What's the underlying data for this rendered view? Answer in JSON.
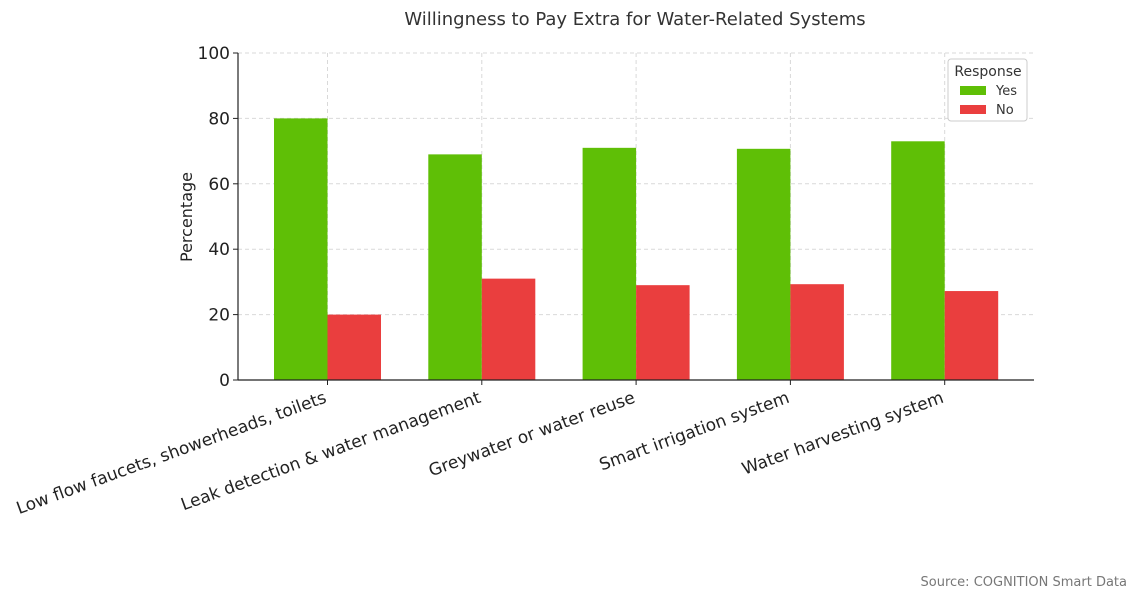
{
  "chart_data": {
    "type": "bar",
    "title": "Willingness to Pay Extra for Water-Related Systems",
    "xlabel": "",
    "ylabel": "Percentage",
    "ylim": [
      0,
      100
    ],
    "yticks": [
      0,
      20,
      40,
      60,
      80,
      100
    ],
    "grid": true,
    "categories": [
      "Low flow faucets, showerheads, toilets",
      "Leak detection & water management",
      "Greywater or water reuse",
      "Smart irrigation system",
      "Water harvesting system"
    ],
    "series": [
      {
        "name": "Yes",
        "color": "#5fbf06",
        "values": [
          80,
          69,
          71,
          70.7,
          73
        ]
      },
      {
        "name": "No",
        "color": "#ea3e3e",
        "values": [
          20,
          31,
          29,
          29.3,
          27.2
        ]
      }
    ],
    "legend": {
      "title": "Response",
      "placement": "top-right"
    }
  },
  "source_note": "Source: COGNITION Smart Data"
}
